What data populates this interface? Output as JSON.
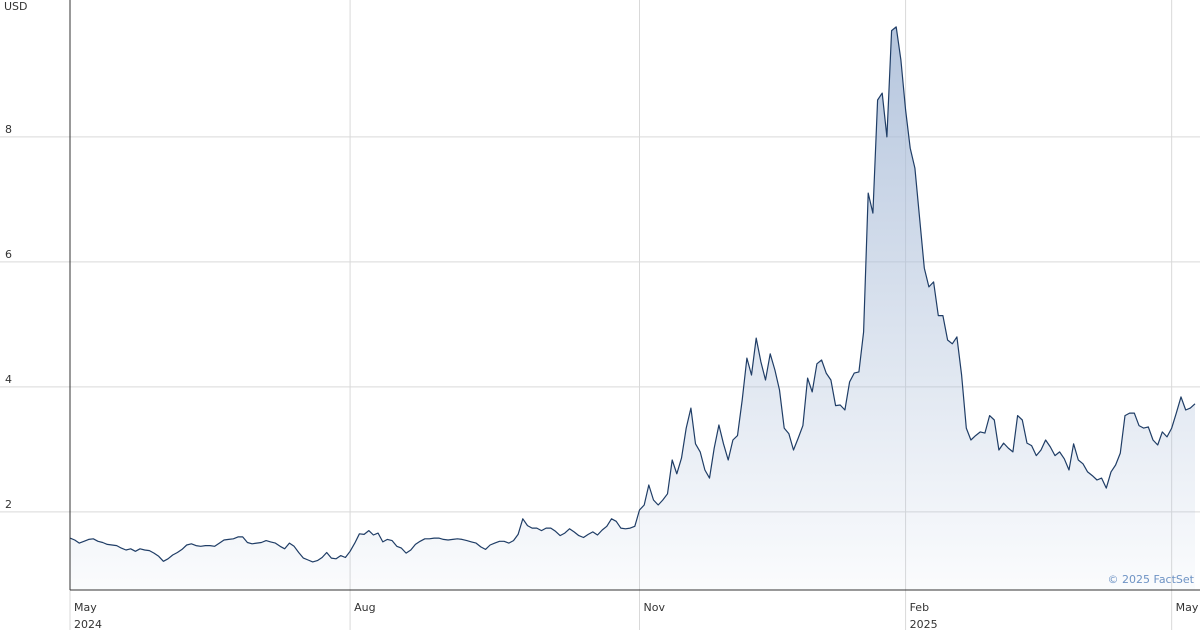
{
  "chart_data": {
    "type": "area",
    "unit_label": "USD",
    "watermark": "© 2025 FactSet",
    "color": "#1f3d66",
    "area_color": "#a9bcd8",
    "grid": true,
    "values": [
      1.58,
      1.55,
      1.5,
      1.53,
      1.56,
      1.57,
      1.53,
      1.51,
      1.48,
      1.47,
      1.46,
      1.42,
      1.39,
      1.41,
      1.37,
      1.41,
      1.39,
      1.38,
      1.34,
      1.29,
      1.21,
      1.25,
      1.31,
      1.35,
      1.4,
      1.47,
      1.49,
      1.46,
      1.45,
      1.46,
      1.46,
      1.45,
      1.5,
      1.55,
      1.56,
      1.57,
      1.6,
      1.6,
      1.51,
      1.49,
      1.5,
      1.51,
      1.54,
      1.52,
      1.5,
      1.45,
      1.41,
      1.5,
      1.45,
      1.35,
      1.26,
      1.23,
      1.2,
      1.22,
      1.27,
      1.35,
      1.26,
      1.25,
      1.3,
      1.27,
      1.37,
      1.5,
      1.65,
      1.64,
      1.7,
      1.63,
      1.66,
      1.52,
      1.56,
      1.54,
      1.45,
      1.42,
      1.34,
      1.39,
      1.48,
      1.53,
      1.57,
      1.57,
      1.58,
      1.58,
      1.56,
      1.55,
      1.56,
      1.57,
      1.56,
      1.54,
      1.52,
      1.5,
      1.44,
      1.4,
      1.47,
      1.5,
      1.53,
      1.53,
      1.5,
      1.54,
      1.64,
      1.89,
      1.78,
      1.74,
      1.74,
      1.7,
      1.74,
      1.74,
      1.69,
      1.62,
      1.66,
      1.73,
      1.68,
      1.62,
      1.59,
      1.64,
      1.68,
      1.63,
      1.71,
      1.77,
      1.89,
      1.85,
      1.74,
      1.73,
      1.74,
      1.77,
      2.03,
      2.11,
      2.43,
      2.19,
      2.11,
      2.19,
      2.29,
      2.83,
      2.61,
      2.86,
      3.34,
      3.66,
      3.09,
      2.96,
      2.67,
      2.54,
      3.02,
      3.39,
      3.09,
      2.83,
      3.15,
      3.22,
      3.79,
      4.46,
      4.19,
      4.78,
      4.4,
      4.11,
      4.53,
      4.27,
      3.95,
      3.34,
      3.25,
      2.99,
      3.18,
      3.38,
      4.14,
      3.92,
      4.37,
      4.43,
      4.22,
      4.11,
      3.7,
      3.71,
      3.63,
      4.08,
      4.22,
      4.24,
      4.88,
      7.1,
      6.78,
      8.59,
      8.7,
      8.0,
      9.7,
      9.76,
      9.23,
      8.43,
      7.82,
      7.5,
      6.7,
      5.9,
      5.6,
      5.68,
      5.14,
      5.14,
      4.75,
      4.69,
      4.8,
      4.19,
      3.34,
      3.15,
      3.22,
      3.28,
      3.26,
      3.54,
      3.47,
      2.99,
      3.1,
      3.02,
      2.96,
      3.54,
      3.47,
      3.1,
      3.06,
      2.9,
      2.99,
      3.15,
      3.04,
      2.9,
      2.96,
      2.85,
      2.67,
      3.09,
      2.83,
      2.77,
      2.64,
      2.58,
      2.51,
      2.54,
      2.38,
      2.64,
      2.75,
      2.94,
      3.54,
      3.58,
      3.58,
      3.38,
      3.34,
      3.36,
      3.15,
      3.07,
      3.28,
      3.2,
      3.34,
      3.58,
      3.84,
      3.63,
      3.66,
      3.73
    ],
    "xlim": [
      0,
      241
    ],
    "xticks": [
      {
        "value": 0,
        "label": "May"
      },
      {
        "value": 60,
        "label": "Aug"
      },
      {
        "value": 122,
        "label": "Nov"
      },
      {
        "value": 179,
        "label": "Feb"
      },
      {
        "value": 236,
        "label": "May"
      }
    ],
    "xtick_years": [
      {
        "value": 0,
        "label": "2024"
      },
      {
        "value": 179,
        "label": "2025"
      }
    ],
    "ylim": [
      0.75,
      10.19
    ],
    "yticks": [
      2,
      4,
      6,
      8
    ]
  }
}
